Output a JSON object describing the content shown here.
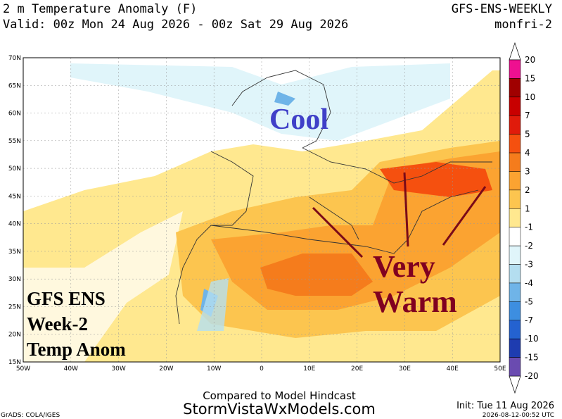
{
  "header": {
    "title": "2 m Temperature Anomaly (F)",
    "model": "GFS-ENS-WEEKLY",
    "valid": "Valid: 00z Mon 24 Aug 2026 - 00z Sat 29 Aug 2026",
    "product": "monfri-2"
  },
  "map": {
    "lat_labels": [
      "70N",
      "65N",
      "60N",
      "55N",
      "50N",
      "45N",
      "40N",
      "35N",
      "30N",
      "25N",
      "20N",
      "15N"
    ],
    "lon_labels": [
      "50W",
      "40W",
      "30W",
      "20W",
      "10W",
      "0",
      "10E",
      "20E",
      "30E",
      "40E",
      "50E"
    ],
    "annotations": {
      "cool": "Cool",
      "very": "Very",
      "warm": "Warm",
      "label_lines": [
        "GFS ENS",
        "Week-2",
        "Temp Anom"
      ]
    }
  },
  "colorbar": {
    "labels": [
      20,
      15,
      10,
      7,
      5,
      4,
      3,
      2,
      1,
      -1,
      -2,
      -3,
      -4,
      -5,
      -7,
      -10,
      -15,
      -20
    ],
    "colors": [
      "#ee1090",
      "#a00000",
      "#c80000",
      "#e01b0b",
      "#f5500f",
      "#f57c1c",
      "#fba331",
      "#fcc54f",
      "#ffe88f",
      "#ffffff",
      "#e0f5fa",
      "#b4def0",
      "#6fb4e8",
      "#3d8ee0",
      "#2462d0",
      "#1e3cb0",
      "#6a4bb0"
    ]
  },
  "footer": {
    "compared": "Compared to Model Hindcast",
    "site": "StormVistaWxModels.com",
    "grads": "GrADS: COLA/IGES",
    "init": "Init: Tue 11 Aug 2026",
    "stamp": "2026-08-12-00:52 UTC"
  }
}
